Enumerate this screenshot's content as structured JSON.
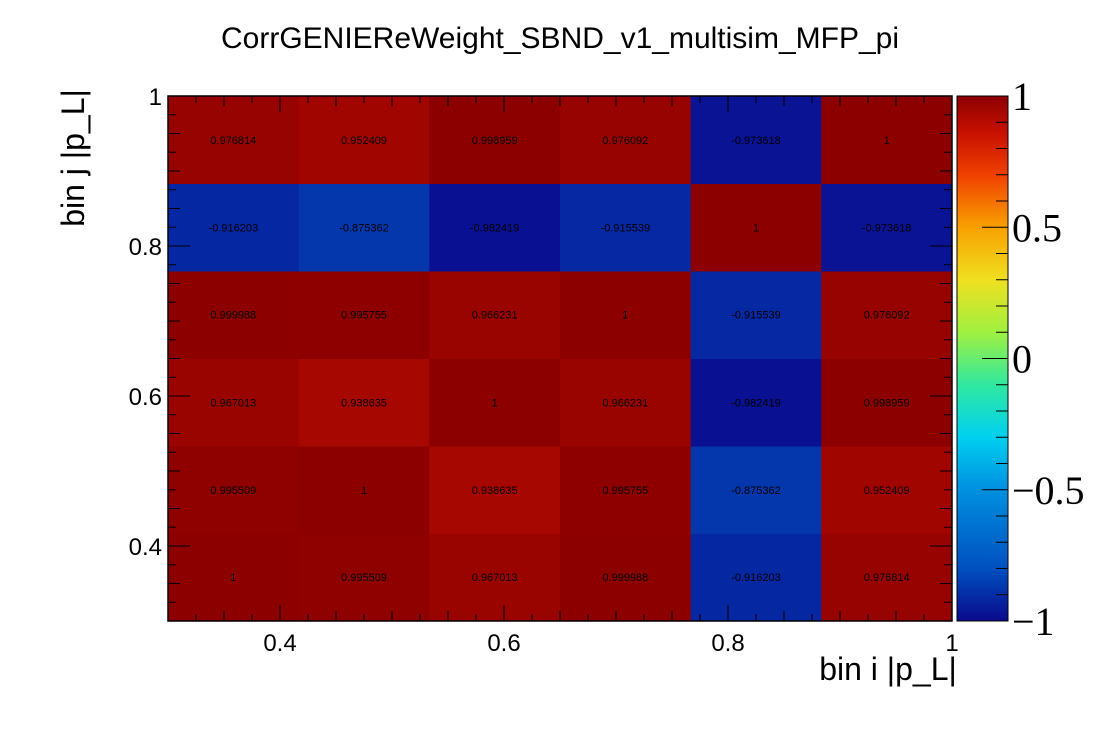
{
  "chart_data": {
    "type": "heatmap",
    "title": "CorrGENIEReWeight_SBND_v1_multisim_MFP_pi",
    "xlabel": "bin i |p_L|",
    "ylabel": "bin j |p_L|",
    "x_edges": [
      0.3,
      0.4167,
      0.5333,
      0.65,
      0.7667,
      0.8833,
      1.0
    ],
    "y_edges": [
      0.3,
      0.4167,
      0.5333,
      0.65,
      0.7667,
      0.8833,
      1.0
    ],
    "xlim": [
      0.3,
      1.0
    ],
    "ylim": [
      0.3,
      1.0
    ],
    "zlim": [
      -1,
      1
    ],
    "x_ticks": [
      0.4,
      0.6,
      0.8,
      1.0
    ],
    "x_tick_labels": [
      "0.4",
      "0.6",
      "0.8",
      "1"
    ],
    "y_ticks": [
      0.4,
      0.6,
      0.8,
      1.0
    ],
    "y_tick_labels": [
      "0.4",
      "0.6",
      "0.8",
      "1"
    ],
    "colorbar_ticks": [
      -1,
      -0.5,
      0,
      0.5,
      1
    ],
    "colorbar_tick_labels": [
      "−1",
      "−0.5",
      "0",
      "0.5",
      "1"
    ],
    "values": [
      [
        1,
        0.995509,
        0.967013,
        0.999988,
        -0.916203,
        0.976814
      ],
      [
        0.995509,
        1,
        0.938635,
        0.995755,
        -0.875362,
        0.952409
      ],
      [
        0.967013,
        0.938635,
        1,
        0.966231,
        -0.982419,
        0.998959
      ],
      [
        0.999988,
        0.995755,
        0.966231,
        1,
        -0.915539,
        0.976092
      ],
      [
        -0.916203,
        -0.875362,
        -0.982419,
        -0.915539,
        1,
        -0.973618
      ],
      [
        0.976814,
        0.952409,
        0.998959,
        0.976092,
        -0.973618,
        1
      ]
    ],
    "value_labels": [
      [
        "1",
        "0.995509",
        "0.967013",
        "0.999988",
        "-0.916203",
        "0.976814"
      ],
      [
        "0.995509",
        "1",
        "0.938635",
        "0.995755",
        "-0.875362",
        "0.952409"
      ],
      [
        "0.967013",
        "0.938635",
        "1",
        "0.966231",
        "-0.982419",
        "0.998959"
      ],
      [
        "0.999988",
        "0.995755",
        "0.966231",
        "1",
        "-0.915539",
        "0.976092"
      ],
      [
        "-0.916203",
        "-0.875362",
        "-0.982419",
        "-0.915539",
        "1",
        "-0.973618"
      ],
      [
        "0.976814",
        "0.952409",
        "0.998959",
        "0.976092",
        "-0.973618",
        "1"
      ]
    ],
    "grid": false,
    "colormap": "rainbow"
  }
}
